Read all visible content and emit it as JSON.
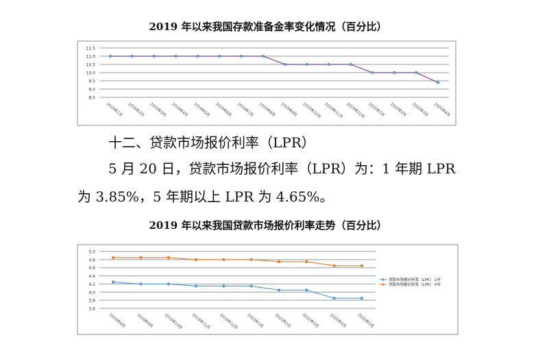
{
  "section_heading": "十二、贷款市场报价利率（LPR）",
  "paragraph": "5 月 20 日，贷款市场报价利率（LPR）为：1 年期 LPR 为 3.85%，5 年期以上 LPR 为 4.65%。",
  "chart_data": [
    {
      "type": "line",
      "title": "2019 年以来我国存款准备金率变化情况（百分比）",
      "categories": [
        "2019年1月",
        "2019年2月",
        "2019年3月",
        "2019年4月",
        "2019年5月",
        "2019年6月",
        "2019年7月",
        "2019年8月",
        "2019年9月",
        "2019年10月",
        "2019年11月",
        "2019年12月",
        "2020年1月",
        "2020年2月",
        "2020年3月",
        "2020年4月"
      ],
      "series": [
        {
          "values": [
            11.0,
            11.0,
            11.0,
            11.0,
            11.0,
            11.0,
            11.0,
            11.0,
            10.5,
            10.5,
            10.5,
            10.5,
            10.0,
            10.0,
            10.0,
            9.4
          ],
          "color": "#7a3f9a",
          "marker_color": "#5b9bd5"
        }
      ],
      "ylim": [
        8.5,
        11.5
      ],
      "yticks": [
        "8.5",
        "9.0",
        "9.5",
        "10.0",
        "10.5",
        "11.0",
        "11.5"
      ],
      "grid": true,
      "legend": "none"
    },
    {
      "type": "line",
      "title": "2019 年以来我国贷款市场报价利率走势（百分比）",
      "categories": [
        "2019年8月",
        "2019年9月",
        "2019年10月",
        "2019年11月",
        "2019年12月",
        "2020年1月",
        "2020年2月",
        "2020年3月",
        "2020年4月",
        "2020年5月"
      ],
      "series": [
        {
          "name": "贷款市场报价利率（LPR）:1年",
          "values": [
            4.25,
            4.2,
            4.2,
            4.15,
            4.15,
            4.15,
            4.05,
            4.05,
            3.85,
            3.85
          ],
          "color": "#5b9bd5"
        },
        {
          "name": "贷款市场报价利率（LPR）:5年",
          "values": [
            4.85,
            4.85,
            4.85,
            4.8,
            4.8,
            4.8,
            4.75,
            4.75,
            4.65,
            4.65
          ],
          "color": "#ed7d31"
        }
      ],
      "ylim": [
        3.6,
        5.0
      ],
      "yticks": [
        "3.6",
        "3.8",
        "4.0",
        "4.2",
        "4.4",
        "4.6",
        "4.8",
        "5.0"
      ],
      "grid": true,
      "legend": "right"
    }
  ]
}
